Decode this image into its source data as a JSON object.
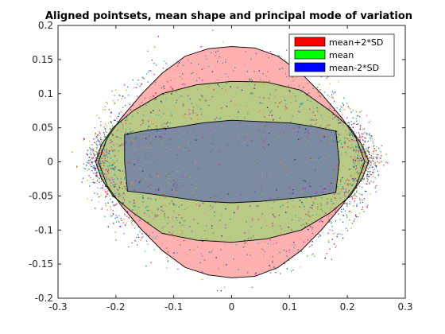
{
  "chart_data": {
    "type": "scatter",
    "title": "Aligned pointsets, mean shape and principal mode of variation",
    "xlabel": "",
    "ylabel": "",
    "xlim": [
      -0.3,
      0.3
    ],
    "ylim": [
      -0.2,
      0.2
    ],
    "xticks": [
      -0.3,
      -0.2,
      -0.1,
      0,
      0.1,
      0.2,
      0.3
    ],
    "yticks": [
      -0.2,
      -0.15,
      -0.1,
      -0.05,
      0,
      0.05,
      0.1,
      0.15,
      0.2
    ],
    "xtick_labels": [
      "-0.3",
      "-0.2",
      "-0.1",
      "0",
      "0.1",
      "0.2",
      "0.3"
    ],
    "ytick_labels": [
      "-0.2",
      "-0.15",
      "-0.1",
      "-0.05",
      "0",
      "0.05",
      "0.1",
      "0.15",
      "0.2"
    ],
    "grid": false,
    "legend_position": "top-right",
    "series": [
      {
        "name": "mean+2*SD",
        "color": "#ff0000",
        "fill": "#ffb0b0",
        "shape": [
          [
            -0.23,
            0
          ],
          [
            -0.215,
            0.035
          ],
          [
            -0.19,
            0.065
          ],
          [
            -0.155,
            0.1
          ],
          [
            -0.12,
            0.13
          ],
          [
            -0.08,
            0.155
          ],
          [
            -0.04,
            0.166
          ],
          [
            0,
            0.169
          ],
          [
            0.04,
            0.167
          ],
          [
            0.08,
            0.155
          ],
          [
            0.12,
            0.13
          ],
          [
            0.155,
            0.1
          ],
          [
            0.19,
            0.065
          ],
          [
            0.215,
            0.035
          ],
          [
            0.23,
            0
          ],
          [
            0.215,
            -0.035
          ],
          [
            0.19,
            -0.065
          ],
          [
            0.155,
            -0.1
          ],
          [
            0.12,
            -0.13
          ],
          [
            0.08,
            -0.155
          ],
          [
            0.04,
            -0.168
          ],
          [
            0,
            -0.17
          ],
          [
            -0.04,
            -0.166
          ],
          [
            -0.08,
            -0.155
          ],
          [
            -0.12,
            -0.13
          ],
          [
            -0.155,
            -0.1
          ],
          [
            -0.19,
            -0.065
          ],
          [
            -0.215,
            -0.035
          ]
        ]
      },
      {
        "name": "mean",
        "color": "#00ff00",
        "fill": "#b9c986",
        "shape": [
          [
            -0.235,
            0
          ],
          [
            -0.225,
            0.025
          ],
          [
            -0.205,
            0.05
          ],
          [
            -0.17,
            0.075
          ],
          [
            -0.12,
            0.1
          ],
          [
            -0.06,
            0.113
          ],
          [
            0,
            0.118
          ],
          [
            0.06,
            0.117
          ],
          [
            0.12,
            0.105
          ],
          [
            0.17,
            0.075
          ],
          [
            0.205,
            0.05
          ],
          [
            0.225,
            0.025
          ],
          [
            0.237,
            0
          ],
          [
            0.225,
            -0.025
          ],
          [
            0.205,
            -0.05
          ],
          [
            0.17,
            -0.075
          ],
          [
            0.12,
            -0.1
          ],
          [
            0.06,
            -0.113
          ],
          [
            0,
            -0.118
          ],
          [
            -0.06,
            -0.115
          ],
          [
            -0.12,
            -0.105
          ],
          [
            -0.17,
            -0.075
          ],
          [
            -0.205,
            -0.05
          ],
          [
            -0.225,
            -0.025
          ]
        ]
      },
      {
        "name": "mean-2*SD",
        "color": "#0000ff",
        "fill": "#7c8aa2",
        "shape": [
          [
            -0.185,
            0.04
          ],
          [
            -0.14,
            0.047
          ],
          [
            -0.1,
            0.05
          ],
          [
            -0.05,
            0.057
          ],
          [
            0,
            0.061
          ],
          [
            0.05,
            0.059
          ],
          [
            0.1,
            0.057
          ],
          [
            0.14,
            0.052
          ],
          [
            0.18,
            0.045
          ],
          [
            0.186,
            0
          ],
          [
            0.18,
            -0.045
          ],
          [
            0.14,
            -0.051
          ],
          [
            0.1,
            -0.054
          ],
          [
            0.05,
            -0.058
          ],
          [
            0,
            -0.06
          ],
          [
            -0.05,
            -0.058
          ],
          [
            -0.1,
            -0.052
          ],
          [
            -0.14,
            -0.047
          ],
          [
            -0.18,
            -0.043
          ],
          [
            -0.185,
            0
          ]
        ]
      }
    ],
    "point_cloud": {
      "description_count": 5600,
      "colors": [
        "#1f77b4",
        "#d62728",
        "#2ca02c",
        "#9467bd",
        "#ff7f0e",
        "#17becf",
        "#8c564b",
        "#e377c2",
        "#bcbd22",
        "#1a1a8c",
        "#ff00ff",
        "#00a0a0"
      ]
    }
  }
}
